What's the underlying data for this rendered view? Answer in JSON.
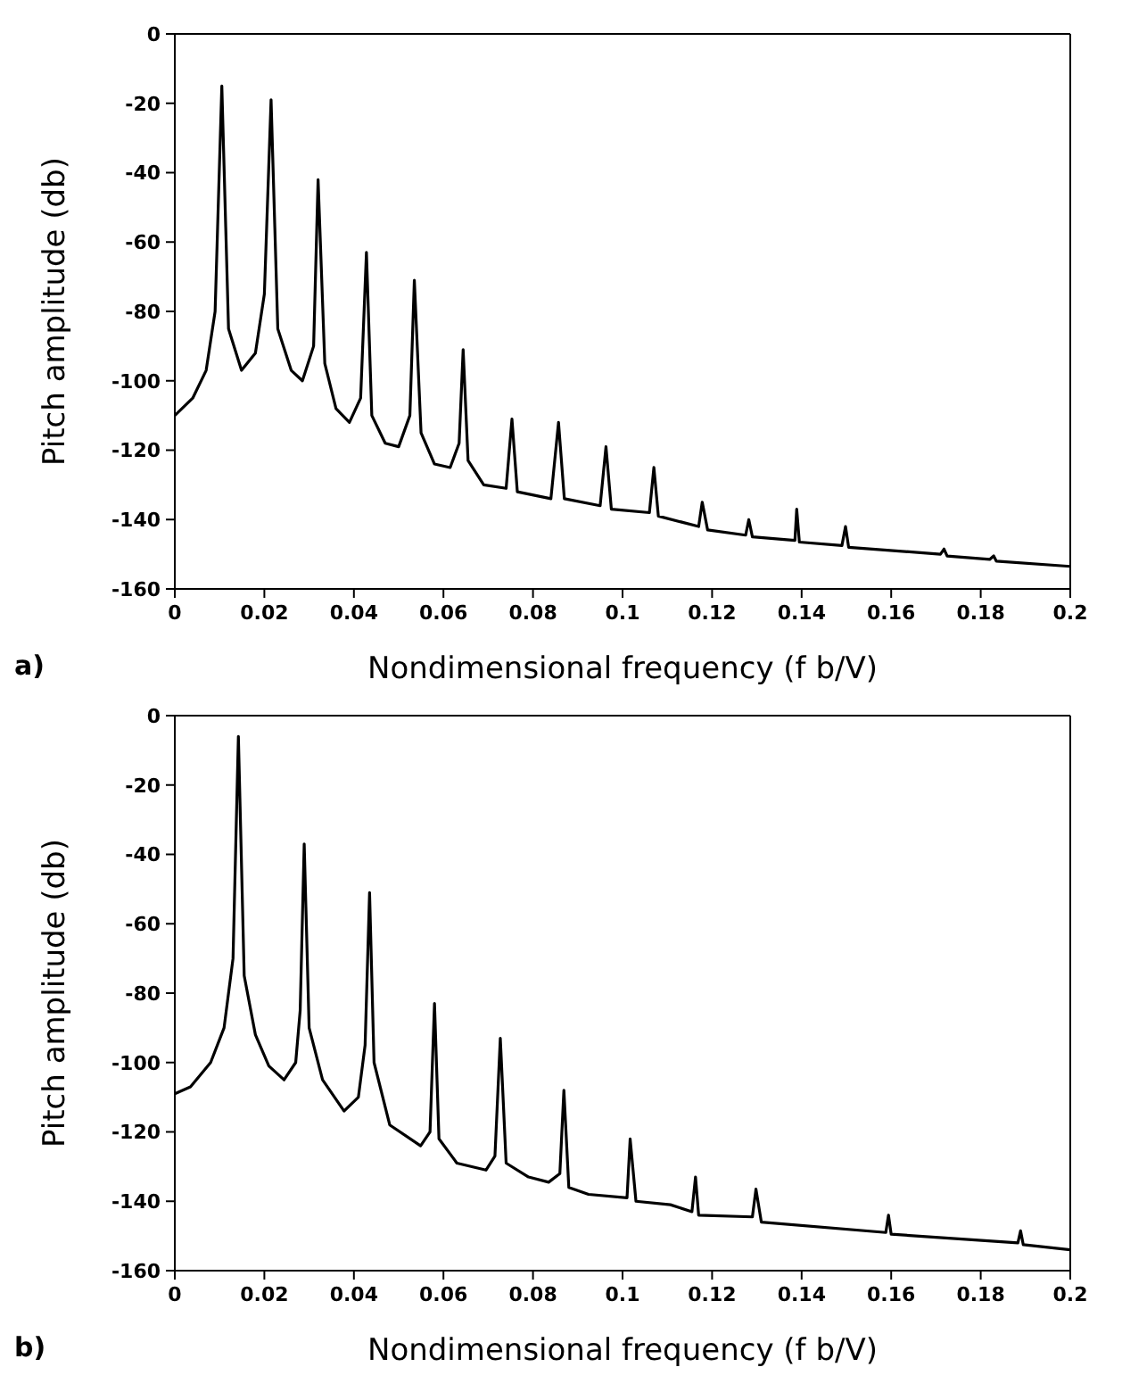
{
  "chart_data": [
    {
      "type": "line",
      "xlabel": "Nondimensional frequency (f b/V)",
      "ylabel": "Pitch amplitude (db)",
      "annotations": [
        "a)"
      ],
      "xlim": [
        0,
        0.2
      ],
      "xticks": [
        0,
        0.02,
        0.04,
        0.06,
        0.08,
        0.1,
        0.12,
        0.14,
        0.16,
        0.18,
        0.2
      ],
      "ylim": [
        -160,
        0
      ],
      "yticks": [
        -160,
        -140,
        -120,
        -100,
        -80,
        -60,
        -40,
        -20,
        0
      ],
      "marker": "none",
      "line_style": "solid",
      "series": [
        {
          "color": "#000000",
          "x": [
            0,
            0.004,
            0.007,
            0.009,
            0.0105,
            0.012,
            0.0149,
            0.018,
            0.02,
            0.0215,
            0.023,
            0.026,
            0.0285,
            0.031,
            0.032,
            0.0335,
            0.036,
            0.039,
            0.0415,
            0.0428,
            0.044,
            0.047,
            0.05,
            0.0525,
            0.0535,
            0.055,
            0.058,
            0.0615,
            0.0635,
            0.0644,
            0.0655,
            0.069,
            0.074,
            0.0753,
            0.0765,
            0.084,
            0.0857,
            0.087,
            0.095,
            0.0963,
            0.0975,
            0.106,
            0.107,
            0.108,
            0.117,
            0.1178,
            0.119,
            0.1275,
            0.1282,
            0.129,
            0.1385,
            0.1389,
            0.1395,
            0.149,
            0.1498,
            0.1505,
            0.171,
            0.1718,
            0.1725,
            0.182,
            0.1829,
            0.1835,
            0.2
          ],
          "values": [
            -110,
            -105,
            -97,
            -80,
            -15,
            -85,
            -97,
            -92,
            -75,
            -19,
            -85,
            -97,
            -100,
            -90,
            -42,
            -95,
            -108,
            -112,
            -105,
            -63,
            -110,
            -118,
            -119,
            -110,
            -71,
            -115,
            -124,
            -125,
            -118,
            -91,
            -123,
            -130,
            -131,
            -111,
            -132,
            -134,
            -112,
            -134,
            -136,
            -119,
            -137,
            -138,
            -125,
            -139,
            -142,
            -135,
            -143,
            -144.5,
            -140,
            -145,
            -146,
            -137,
            -146.5,
            -147.5,
            -142,
            -148,
            -150,
            -148.5,
            -150.5,
            -151.5,
            -150.5,
            -152,
            -153.5
          ]
        }
      ]
    },
    {
      "type": "line",
      "xlabel": "Nondimensional frequency (f b/V)",
      "ylabel": "Pitch amplitude (db)",
      "annotations": [
        "b)"
      ],
      "xlim": [
        0,
        0.2
      ],
      "xticks": [
        0,
        0.02,
        0.04,
        0.06,
        0.08,
        0.1,
        0.12,
        0.14,
        0.16,
        0.18,
        0.2
      ],
      "ylim": [
        -160,
        0
      ],
      "yticks": [
        -160,
        -140,
        -120,
        -100,
        -80,
        -60,
        -40,
        -20,
        0
      ],
      "marker": "none",
      "line_style": "solid",
      "series": [
        {
          "color": "#000000",
          "x": [
            0,
            0.0035,
            0.008,
            0.011,
            0.013,
            0.0142,
            0.0155,
            0.018,
            0.021,
            0.0244,
            0.027,
            0.028,
            0.0289,
            0.03,
            0.033,
            0.0378,
            0.041,
            0.0425,
            0.0435,
            0.0445,
            0.048,
            0.0549,
            0.057,
            0.058,
            0.059,
            0.063,
            0.0695,
            0.0715,
            0.0727,
            0.074,
            0.079,
            0.0835,
            0.086,
            0.0869,
            0.088,
            0.0924,
            0.101,
            0.1017,
            0.103,
            0.1107,
            0.1155,
            0.1163,
            0.117,
            0.129,
            0.1298,
            0.131,
            0.1588,
            0.1594,
            0.16,
            0.1883,
            0.1889,
            0.1895,
            0.2
          ],
          "values": [
            -109,
            -107,
            -100,
            -90,
            -70,
            -6,
            -75,
            -92,
            -101,
            -105,
            -100,
            -85,
            -37,
            -90,
            -105,
            -114,
            -110,
            -95,
            -51,
            -100,
            -118,
            -124,
            -120,
            -83,
            -122,
            -129,
            -131,
            -127,
            -93,
            -129,
            -133,
            -134.5,
            -132,
            -108,
            -136,
            -138,
            -139,
            -122,
            -140,
            -141,
            -143,
            -133,
            -144,
            -144.5,
            -136.5,
            -146,
            -149,
            -144,
            -149.5,
            -152,
            -148.5,
            -152.5,
            -154
          ]
        }
      ]
    }
  ]
}
